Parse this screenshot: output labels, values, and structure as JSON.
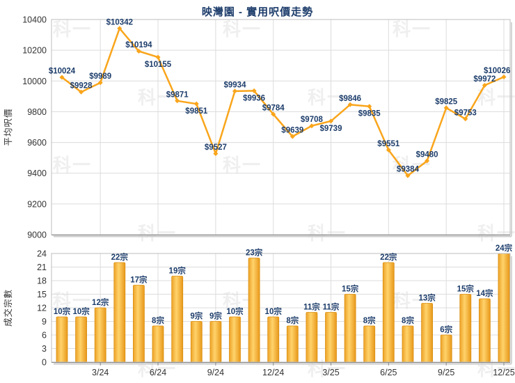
{
  "title": "映灣園 - 實用呎價走勢",
  "watermark": {
    "text": "科一"
  },
  "colors": {
    "accent_line": "#F9A51B",
    "bar_edge": "#EDA227",
    "bar_center": "#FFD36B",
    "bar_stroke": "#DB8F10",
    "data_label": "#1D3D6B",
    "title": "#1D3D6B",
    "axis_text": "#333333",
    "grid": "#DCDCDC",
    "border": "#BDBDBD",
    "axis_line": "#8A8A8A",
    "shadow": "#C9C9C9",
    "watermark": "#EFEFEF"
  },
  "x_axis": {
    "n_points": 24,
    "tick_labels": [
      "3/24",
      "6/24",
      "9/24",
      "12/24",
      "3/25",
      "6/25",
      "9/25",
      "12/25"
    ],
    "tick_indices": [
      2,
      5,
      8,
      11,
      14,
      17,
      20,
      23
    ]
  },
  "chart_data": [
    {
      "type": "line",
      "name": "price-line-chart",
      "title": "映灣園 - 實用呎價走勢",
      "ylabel": "平均呎價",
      "ylim": [
        9000,
        10400
      ],
      "ytick_step": 200,
      "grid": true,
      "legend": "none",
      "label_prefix": "$",
      "values": [
        10024,
        9928,
        9989,
        10342,
        10194,
        10155,
        9871,
        9851,
        9527,
        9934,
        9936,
        9784,
        9639,
        9708,
        9739,
        9846,
        9835,
        9551,
        9384,
        9480,
        9825,
        9753,
        9972,
        10026
      ],
      "labels_below_indices": [
        5,
        7,
        10,
        14,
        16
      ]
    },
    {
      "type": "bar",
      "name": "volume-bar-chart",
      "ylabel": "成交宗數",
      "ylim": [
        0,
        24
      ],
      "ytick_step": 3,
      "grid": true,
      "legend": "none",
      "label_suffix": "宗",
      "values": [
        10,
        10,
        12,
        22,
        17,
        8,
        19,
        9,
        9,
        10,
        23,
        10,
        8,
        11,
        11,
        15,
        8,
        22,
        8,
        13,
        6,
        15,
        14,
        24
      ]
    }
  ]
}
